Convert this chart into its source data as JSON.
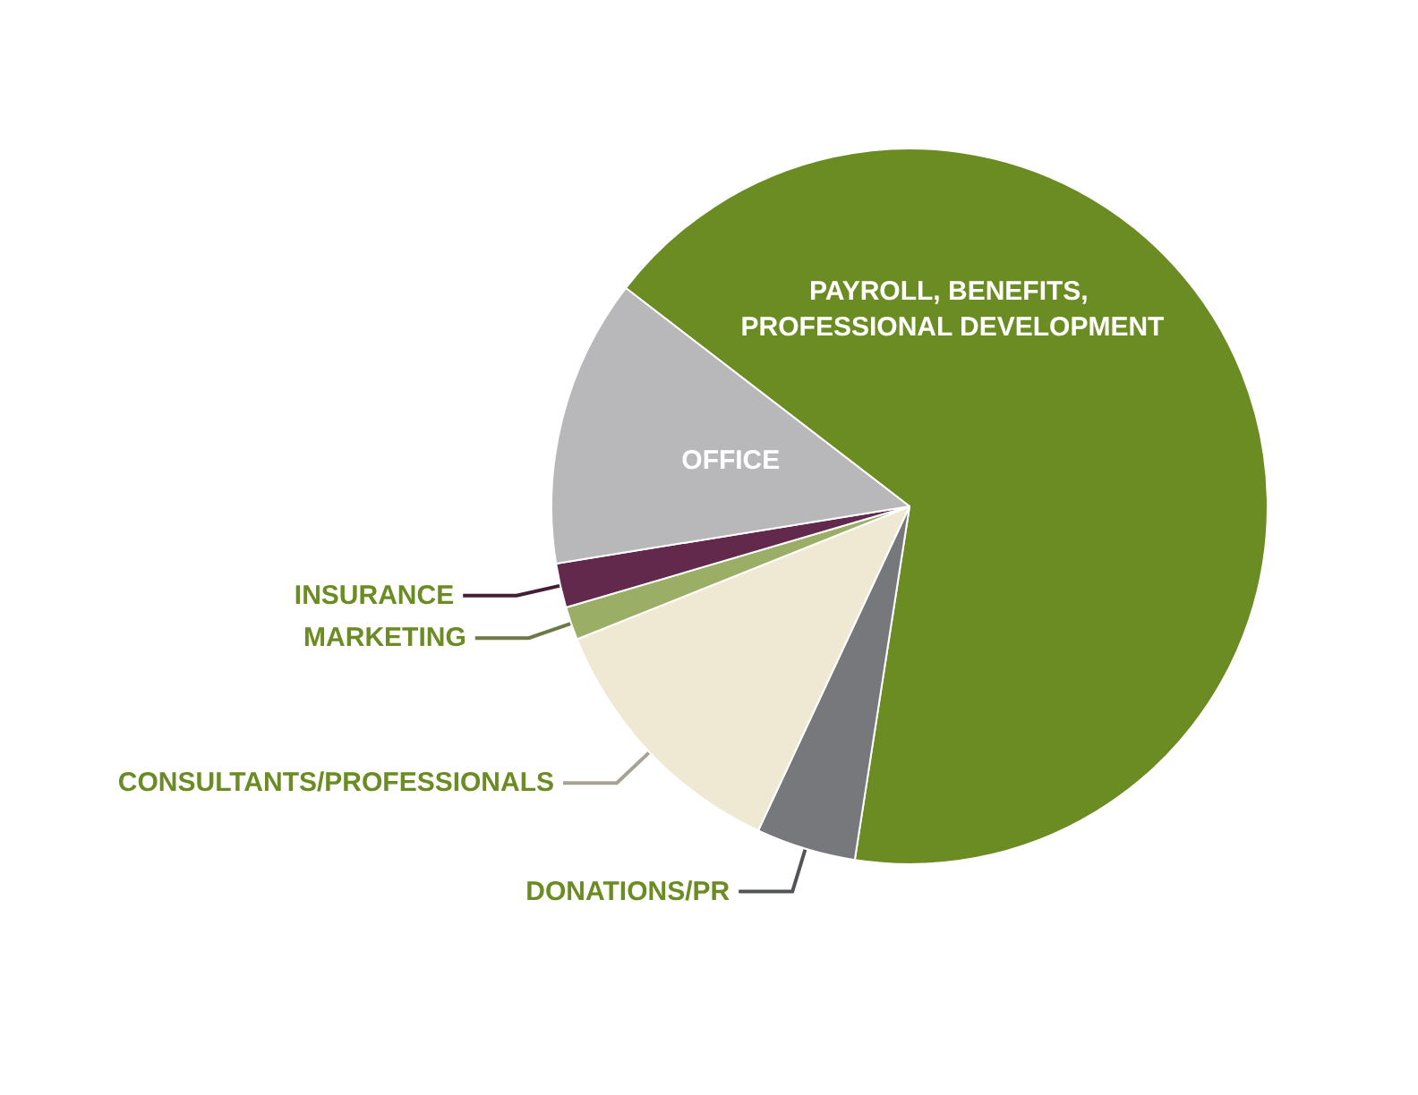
{
  "chart_data": {
    "type": "pie",
    "categories": [
      "PAYROLL, BENEFITS, PROFESSIONAL DEVELOPMENT",
      "DONATIONS/PR",
      "CONSULTANTS/PROFESSIONALS",
      "MARKETING",
      "INSURANCE",
      "OFFICE"
    ],
    "values": [
      67,
      4.5,
      12,
      1.5,
      2,
      13
    ],
    "colors": [
      "#6b8c23",
      "#77787c",
      "#efe9d3",
      "#9aae65",
      "#62294c",
      "#b8b8ba"
    ]
  }
}
